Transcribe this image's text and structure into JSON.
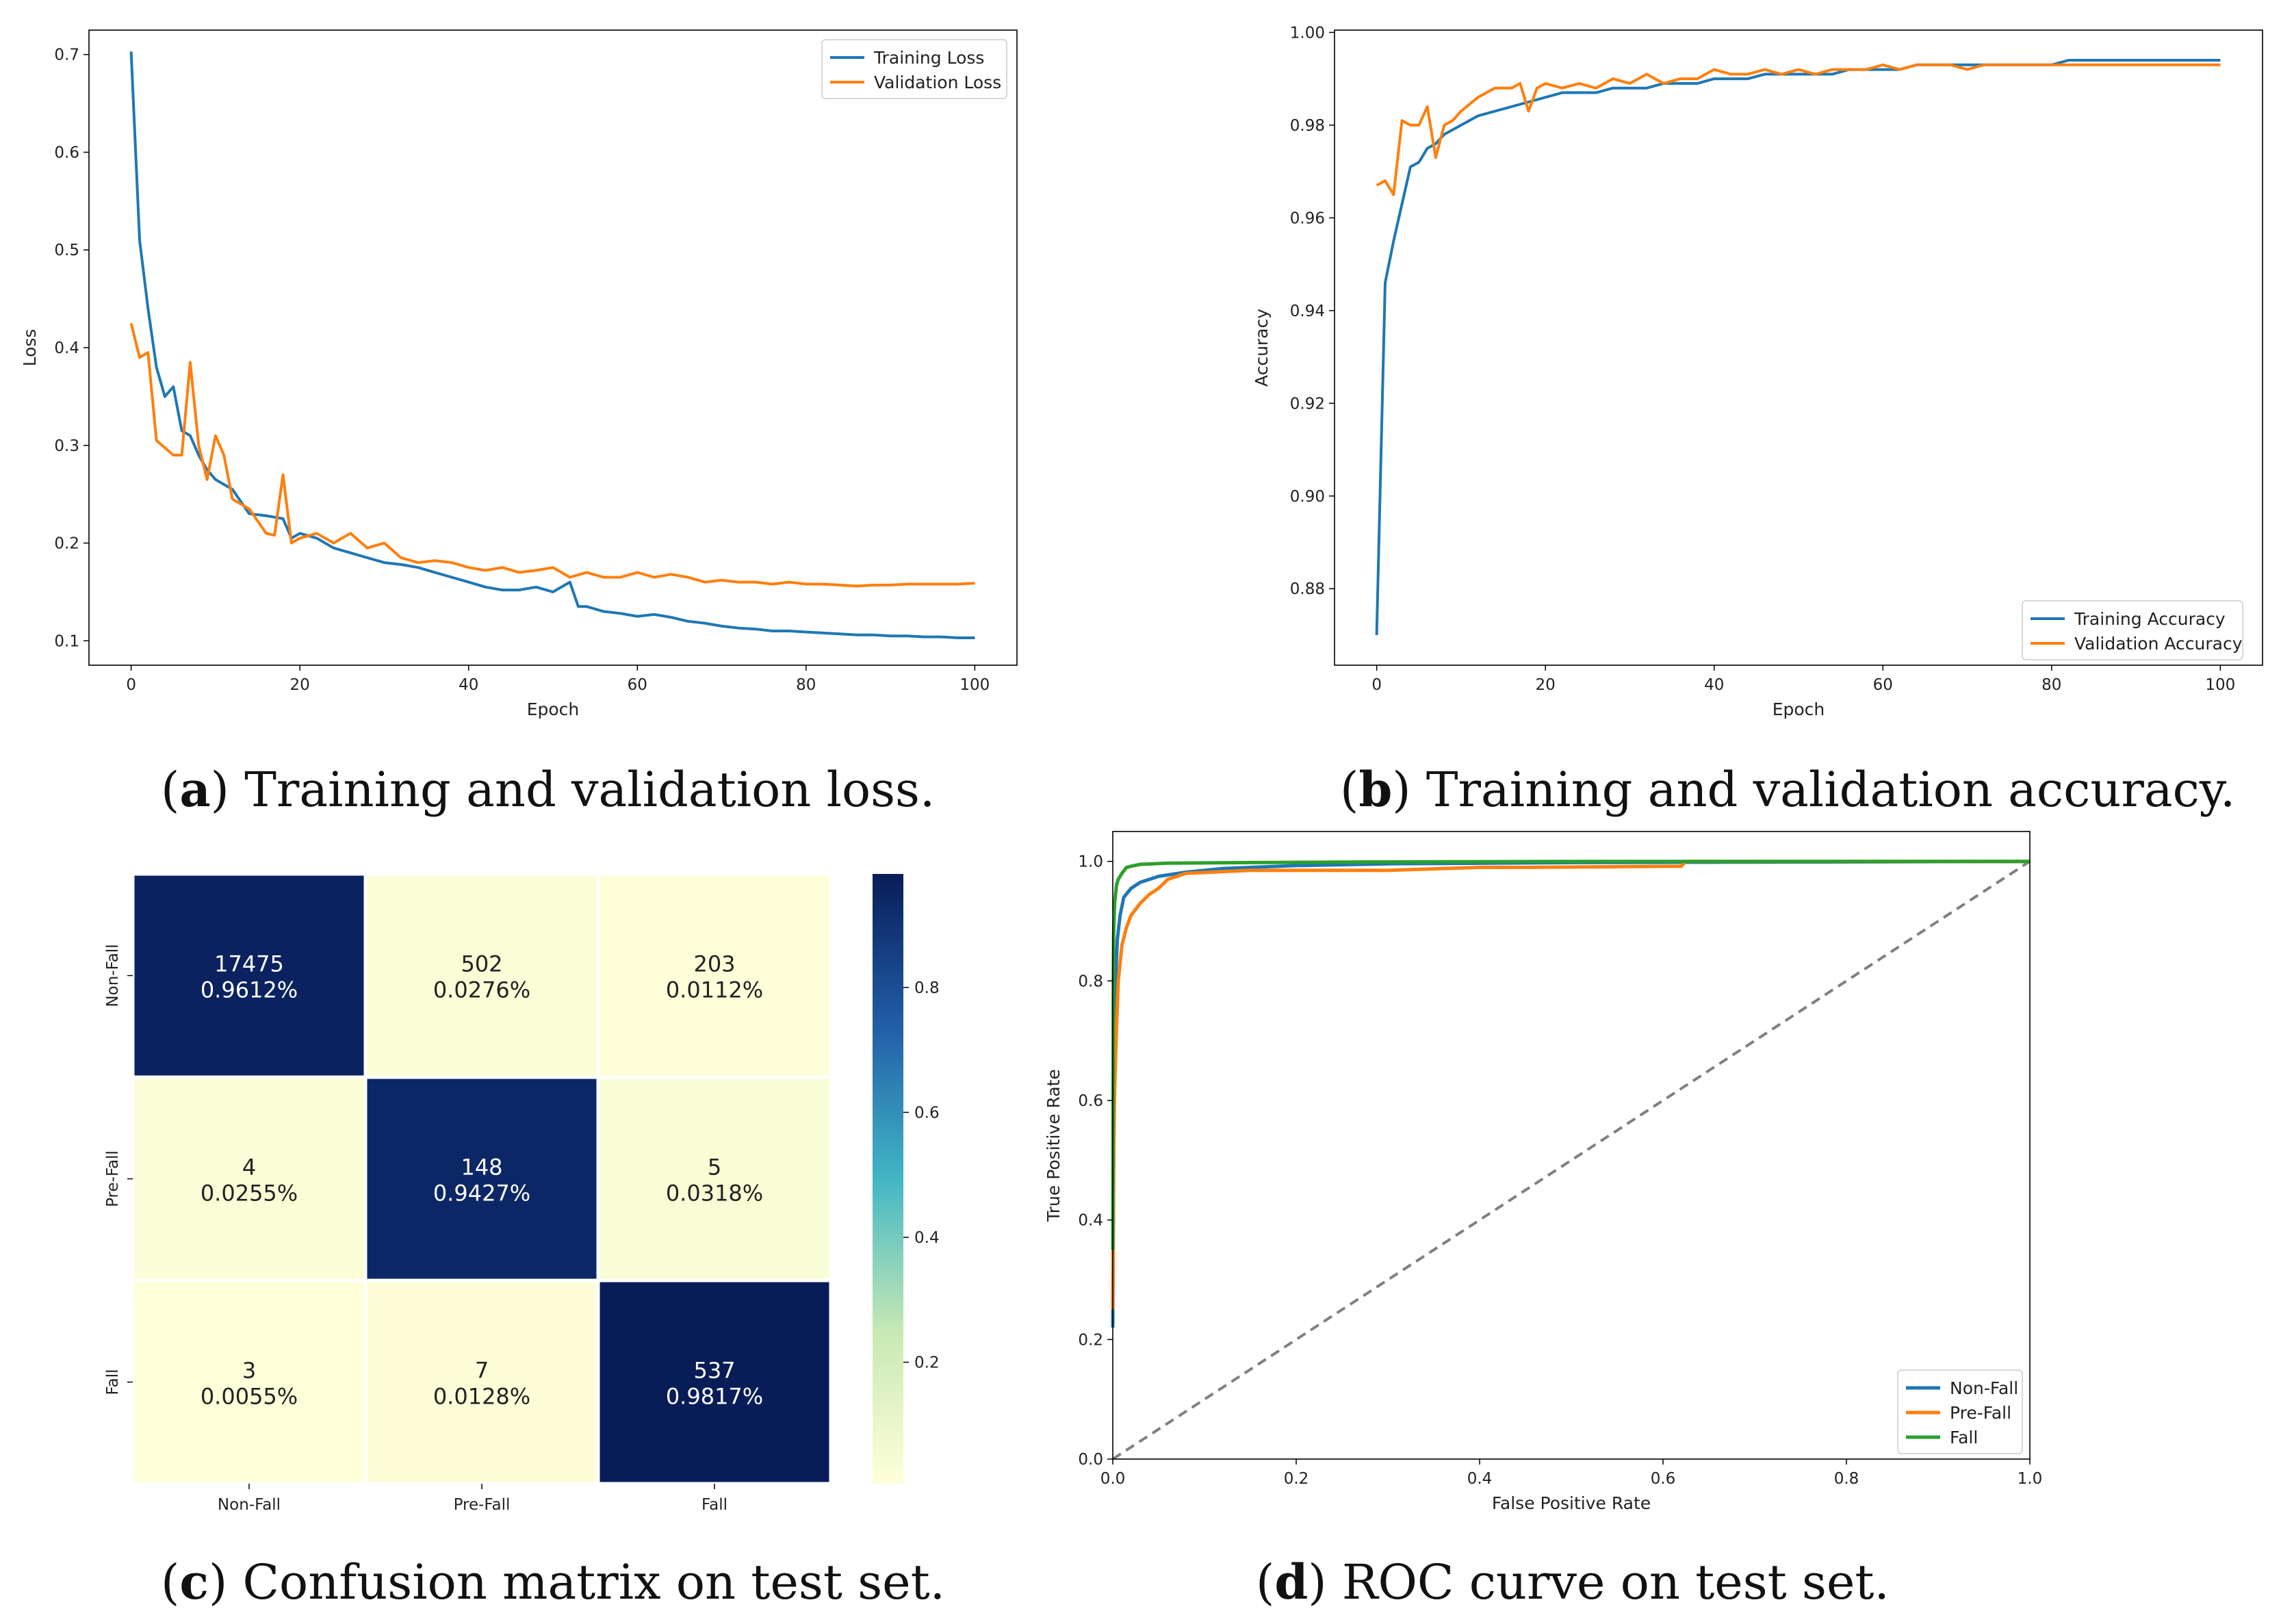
{
  "figure": {
    "captions": [
      {
        "letter": "a",
        "text": "Training and validation loss."
      },
      {
        "letter": "b",
        "text": "Training and validation accuracy."
      },
      {
        "letter": "c",
        "text": "Confusion matrix on test set."
      },
      {
        "letter": "d",
        "text": "ROC curve on test set."
      }
    ]
  },
  "chart_data": [
    {
      "type": "line",
      "title": "",
      "xlabel": "Epoch",
      "ylabel": "Loss",
      "xlim": [
        -5,
        105
      ],
      "ylim": [
        0.075,
        0.725
      ],
      "xticks": [
        0,
        20,
        40,
        60,
        80,
        100
      ],
      "yticks": [
        0.1,
        0.2,
        0.3,
        0.4,
        0.5,
        0.6,
        0.7
      ],
      "grid": false,
      "legend_position": "top-right",
      "series": [
        {
          "name": "Training Loss",
          "color": "#1f77b4",
          "x": [
            0,
            1,
            2,
            3,
            4,
            5,
            6,
            7,
            8,
            9,
            10,
            11,
            12,
            14,
            16,
            18,
            19,
            20,
            22,
            24,
            26,
            28,
            30,
            32,
            34,
            36,
            38,
            40,
            42,
            44,
            46,
            48,
            50,
            52,
            53,
            54,
            56,
            58,
            60,
            62,
            64,
            66,
            68,
            70,
            72,
            74,
            76,
            78,
            80,
            82,
            84,
            86,
            88,
            90,
            92,
            94,
            96,
            98,
            100
          ],
          "values": [
            0.703,
            0.51,
            0.44,
            0.38,
            0.35,
            0.36,
            0.315,
            0.31,
            0.29,
            0.275,
            0.265,
            0.26,
            0.255,
            0.23,
            0.228,
            0.225,
            0.205,
            0.21,
            0.205,
            0.195,
            0.19,
            0.185,
            0.18,
            0.178,
            0.175,
            0.17,
            0.165,
            0.16,
            0.155,
            0.152,
            0.152,
            0.155,
            0.15,
            0.16,
            0.135,
            0.135,
            0.13,
            0.128,
            0.125,
            0.127,
            0.124,
            0.12,
            0.118,
            0.115,
            0.113,
            0.112,
            0.11,
            0.11,
            0.109,
            0.108,
            0.107,
            0.106,
            0.106,
            0.105,
            0.105,
            0.104,
            0.104,
            0.103,
            0.103
          ]
        },
        {
          "name": "Validation Loss",
          "color": "#ff7f0e",
          "x": [
            0,
            1,
            2,
            3,
            5,
            6,
            7,
            8,
            9,
            10,
            11,
            12,
            14,
            16,
            17,
            18,
            19,
            20,
            22,
            24,
            26,
            28,
            30,
            32,
            34,
            36,
            38,
            40,
            42,
            44,
            46,
            48,
            50,
            52,
            54,
            56,
            58,
            60,
            62,
            64,
            66,
            68,
            70,
            72,
            74,
            76,
            78,
            80,
            82,
            84,
            86,
            88,
            90,
            92,
            94,
            96,
            98,
            100
          ],
          "values": [
            0.425,
            0.39,
            0.395,
            0.305,
            0.29,
            0.29,
            0.385,
            0.3,
            0.265,
            0.31,
            0.29,
            0.245,
            0.235,
            0.21,
            0.208,
            0.27,
            0.2,
            0.205,
            0.21,
            0.2,
            0.21,
            0.195,
            0.2,
            0.185,
            0.18,
            0.182,
            0.18,
            0.175,
            0.172,
            0.175,
            0.17,
            0.172,
            0.175,
            0.165,
            0.17,
            0.165,
            0.165,
            0.17,
            0.165,
            0.168,
            0.165,
            0.16,
            0.162,
            0.16,
            0.16,
            0.158,
            0.16,
            0.158,
            0.158,
            0.157,
            0.156,
            0.157,
            0.157,
            0.158,
            0.158,
            0.158,
            0.158,
            0.159
          ]
        }
      ]
    },
    {
      "type": "line",
      "title": "",
      "xlabel": "Epoch",
      "ylabel": "Accuracy",
      "xlim": [
        -5,
        105
      ],
      "ylim": [
        0.8635,
        1.0005
      ],
      "xticks": [
        0,
        20,
        40,
        60,
        80,
        100
      ],
      "yticks": [
        0.88,
        0.9,
        0.92,
        0.94,
        0.96,
        0.98,
        1.0
      ],
      "ytick_labels": [
        "0.88",
        "0.90",
        "0.92",
        "0.94",
        "0.96",
        "0.98",
        "1.00"
      ],
      "grid": false,
      "legend_position": "bottom-right",
      "series": [
        {
          "name": "Training Accuracy",
          "color": "#1f77b4",
          "x": [
            0,
            1,
            2,
            3,
            4,
            5,
            6,
            7,
            8,
            10,
            12,
            14,
            16,
            18,
            20,
            22,
            24,
            26,
            28,
            30,
            32,
            34,
            36,
            38,
            40,
            42,
            44,
            46,
            48,
            50,
            52,
            54,
            56,
            58,
            60,
            62,
            64,
            66,
            68,
            70,
            72,
            74,
            76,
            78,
            80,
            82,
            84,
            86,
            88,
            90,
            92,
            94,
            96,
            98,
            100
          ],
          "values": [
            0.87,
            0.946,
            0.955,
            0.963,
            0.971,
            0.972,
            0.975,
            0.976,
            0.978,
            0.98,
            0.982,
            0.983,
            0.984,
            0.985,
            0.986,
            0.987,
            0.987,
            0.987,
            0.988,
            0.988,
            0.988,
            0.989,
            0.989,
            0.989,
            0.99,
            0.99,
            0.99,
            0.991,
            0.991,
            0.991,
            0.991,
            0.991,
            0.992,
            0.992,
            0.992,
            0.992,
            0.993,
            0.993,
            0.993,
            0.993,
            0.993,
            0.993,
            0.993,
            0.993,
            0.993,
            0.994,
            0.994,
            0.994,
            0.994,
            0.994,
            0.994,
            0.994,
            0.994,
            0.994,
            0.994
          ]
        },
        {
          "name": "Validation Accuracy",
          "color": "#ff7f0e",
          "x": [
            0,
            1,
            2,
            3,
            4,
            5,
            6,
            7,
            8,
            9,
            10,
            12,
            14,
            16,
            17,
            18,
            19,
            20,
            22,
            24,
            26,
            28,
            30,
            32,
            34,
            36,
            38,
            40,
            42,
            44,
            46,
            48,
            50,
            52,
            54,
            56,
            58,
            60,
            62,
            64,
            66,
            68,
            70,
            72,
            74,
            76,
            78,
            80,
            82,
            84,
            86,
            88,
            90,
            92,
            94,
            96,
            98,
            100
          ],
          "values": [
            0.967,
            0.968,
            0.965,
            0.981,
            0.98,
            0.98,
            0.984,
            0.973,
            0.98,
            0.981,
            0.983,
            0.986,
            0.988,
            0.988,
            0.989,
            0.983,
            0.988,
            0.989,
            0.988,
            0.989,
            0.988,
            0.99,
            0.989,
            0.991,
            0.989,
            0.99,
            0.99,
            0.992,
            0.991,
            0.991,
            0.992,
            0.991,
            0.992,
            0.991,
            0.992,
            0.992,
            0.992,
            0.993,
            0.992,
            0.993,
            0.993,
            0.993,
            0.992,
            0.993,
            0.993,
            0.993,
            0.993,
            0.993,
            0.993,
            0.993,
            0.993,
            0.993,
            0.993,
            0.993,
            0.993,
            0.993,
            0.993,
            0.993
          ]
        }
      ]
    },
    {
      "type": "heatmap",
      "title": "",
      "row_labels": [
        "Non-Fall",
        "Pre-Fall",
        "Fall"
      ],
      "col_labels": [
        "Non-Fall",
        "Pre-Fall",
        "Fall"
      ],
      "counts": [
        [
          17475,
          502,
          203
        ],
        [
          4,
          148,
          5
        ],
        [
          3,
          7,
          537
        ]
      ],
      "percent_labels": [
        [
          "0.9612%",
          "0.0276%",
          "0.0112%"
        ],
        [
          "0.0255%",
          "0.9427%",
          "0.0318%"
        ],
        [
          "0.0055%",
          "0.0128%",
          "0.9817%"
        ]
      ],
      "fractions": [
        [
          0.9612,
          0.0276,
          0.0112
        ],
        [
          0.0255,
          0.9427,
          0.0318
        ],
        [
          0.0055,
          0.0128,
          0.9817
        ]
      ],
      "colorbar": {
        "min": 0.0055,
        "max": 0.9817,
        "ticks": [
          0.2,
          0.4,
          0.6,
          0.8
        ],
        "tick_labels": [
          "0.2",
          "0.4",
          "0.6",
          "0.8"
        ]
      },
      "colors": {
        "low": "#ffffd9",
        "mid_low": "#c7e9b4",
        "mid": "#41b6c4",
        "mid_high": "#225ea8",
        "high": "#081d58"
      }
    },
    {
      "type": "line",
      "title": "",
      "xlabel": "False Positive Rate",
      "ylabel": "True Positive Rate",
      "xlim": [
        0,
        1
      ],
      "ylim": [
        0,
        1.05
      ],
      "xticks": [
        0,
        0.2,
        0.4,
        0.6,
        0.8,
        1.0
      ],
      "yticks": [
        0,
        0.2,
        0.4,
        0.6,
        0.8,
        1.0
      ],
      "xtick_labels": [
        "0.0",
        "0.2",
        "0.4",
        "0.6",
        "0.8",
        "1.0"
      ],
      "ytick_labels": [
        "0.0",
        "0.2",
        "0.4",
        "0.6",
        "0.8",
        "1.0"
      ],
      "grid": false,
      "legend_position": "bottom-right",
      "diagonal": {
        "color": "#808080",
        "style": "dashed"
      },
      "series": [
        {
          "name": "Non-Fall",
          "color": "#1f77b4",
          "x": [
            0,
            0.001,
            0.002,
            0.003,
            0.005,
            0.008,
            0.012,
            0.02,
            0.03,
            0.05,
            0.08,
            0.12,
            0.2,
            0.3,
            0.5,
            1.0
          ],
          "values": [
            0.22,
            0.5,
            0.7,
            0.8,
            0.87,
            0.91,
            0.94,
            0.955,
            0.965,
            0.975,
            0.982,
            0.988,
            0.993,
            0.996,
            0.998,
            1.0
          ]
        },
        {
          "name": "Pre-Fall",
          "color": "#ff7f0e",
          "x": [
            0,
            0.001,
            0.002,
            0.004,
            0.006,
            0.01,
            0.015,
            0.02,
            0.03,
            0.04,
            0.05,
            0.06,
            0.08,
            0.15,
            0.3,
            0.4,
            0.45,
            0.62,
            0.625,
            1.0
          ],
          "values": [
            0.25,
            0.5,
            0.62,
            0.72,
            0.8,
            0.86,
            0.89,
            0.91,
            0.93,
            0.945,
            0.955,
            0.97,
            0.98,
            0.985,
            0.985,
            0.99,
            0.99,
            0.992,
            1.0,
            1.0
          ]
        },
        {
          "name": "Fall",
          "color": "#2ca02c",
          "x": [
            0,
            0.0005,
            0.001,
            0.002,
            0.004,
            0.006,
            0.01,
            0.015,
            0.02,
            0.03,
            0.06,
            0.15,
            0.28,
            0.5,
            1.0
          ],
          "values": [
            0.35,
            0.8,
            0.88,
            0.93,
            0.96,
            0.97,
            0.98,
            0.99,
            0.992,
            0.995,
            0.997,
            0.998,
            0.999,
            1.0,
            1.0
          ]
        }
      ]
    }
  ]
}
